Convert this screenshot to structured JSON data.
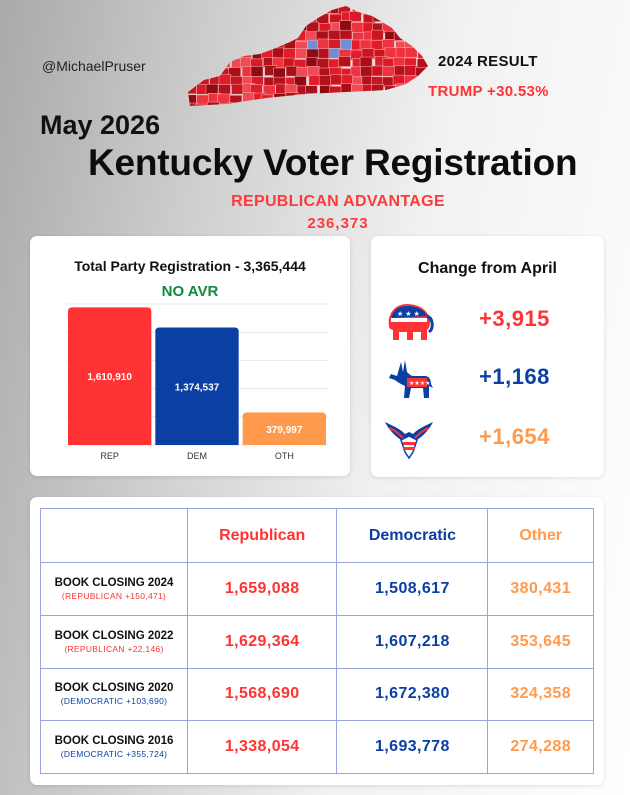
{
  "header": {
    "handle": "@MichaelPruser",
    "result_title": "2024 RESULT",
    "result_value": "TRUMP +30.53%",
    "date": "May 2026",
    "title": "Kentucky Voter Registration",
    "advantage_label": "REPUBLICAN ADVANTAGE",
    "advantage_value": "236,373"
  },
  "colors": {
    "rep": "#ff3333",
    "dem": "#0b3fa3",
    "oth": "#ff9a4d",
    "green": "#138a3c"
  },
  "registration": {
    "title": "Total Party Registration - 3,365,444",
    "subtitle": "NO AVR"
  },
  "chart_data": {
    "type": "bar",
    "title": "Total Party Registration - 3,365,444",
    "categories": [
      "REP",
      "DEM",
      "OTH"
    ],
    "values": [
      1610910,
      1374537,
      379997
    ],
    "value_labels": [
      "1,610,910",
      "1,374,537",
      "379,997"
    ],
    "colors": [
      "#ff3333",
      "#0b3fa3",
      "#ff9a4d"
    ],
    "ylim": [
      0,
      1650000
    ],
    "grid": true
  },
  "change": {
    "title": "Change from April",
    "items": [
      {
        "icon": "republican-elephant-icon",
        "value": "+3,915",
        "color": "#ff3333"
      },
      {
        "icon": "democratic-donkey-icon",
        "value": "+1,168",
        "color": "#0b3fa3"
      },
      {
        "icon": "eagle-icon",
        "value": "+1,654",
        "color": "#ff9a4d"
      }
    ]
  },
  "table": {
    "headers": [
      "",
      "Republican",
      "Democratic",
      "Other"
    ],
    "rows": [
      {
        "title": "BOOK CLOSING 2024",
        "note": "(REPUBLICAN +150,471)",
        "note_color": "#ff3333",
        "rep": "1,659,088",
        "dem": "1,508,617",
        "oth": "380,431"
      },
      {
        "title": "BOOK CLOSING 2022",
        "note": "(REPUBLICAN +22,146)",
        "note_color": "#ff3333",
        "rep": "1,629,364",
        "dem": "1,607,218",
        "oth": "353,645"
      },
      {
        "title": "BOOK CLOSING 2020",
        "note": "(DEMOCRATIC +103,690)",
        "note_color": "#0b3fa3",
        "rep": "1,568,690",
        "dem": "1,672,380",
        "oth": "324,358"
      },
      {
        "title": "BOOK CLOSING 2016",
        "note": "(DEMOCRATIC +355,724)",
        "note_color": "#0b3fa3",
        "rep": "1,338,054",
        "dem": "1,693,778",
        "oth": "274,288"
      }
    ]
  }
}
